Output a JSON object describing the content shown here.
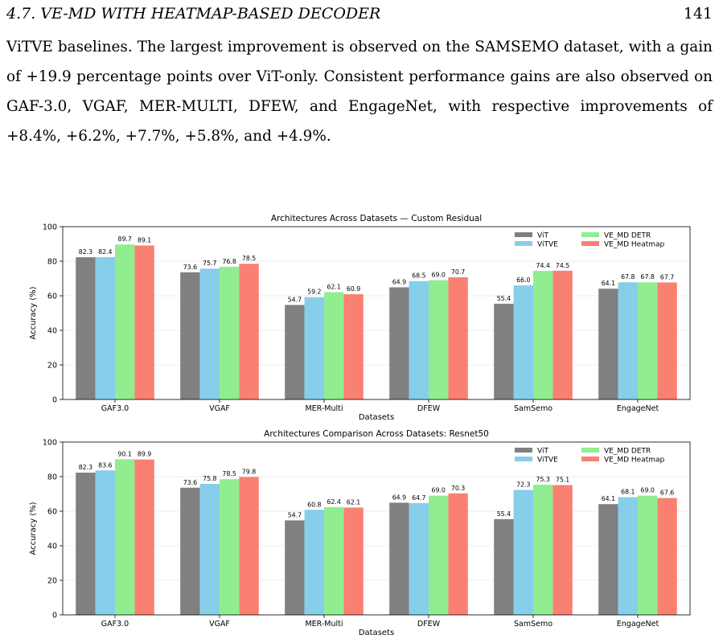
{
  "header": {
    "section": "4.7. VE-MD WITH HEATMAP-BASED DECODER",
    "page_number": "141"
  },
  "paragraph": "ViTVE baselines. The largest improvement is observed on the SAMSEMO dataset, with a gain of +19.9 percentage points over ViT-only. Consistent performance gains are also observed on GAF-3.0, VGAF, MER-MULTI, DFEW, and EngageNet, with respective improvements of +8.4%, +6.2%, +7.7%, +5.8%, and +4.9%.",
  "chart_data": [
    {
      "type": "bar",
      "title": "Architectures Across Datasets — Custom Residual",
      "xlabel": "Datasets",
      "ylabel": "Accuracy (%)",
      "ylim": [
        0,
        100
      ],
      "yticks": [
        "0",
        "20",
        "40",
        "60",
        "80",
        "100"
      ],
      "grid": true,
      "legend_position": "top-right",
      "categories": [
        "GAF3.0",
        "VGAF",
        "MER-Multi",
        "DFEW",
        "SamSemo",
        "EngageNet"
      ],
      "series": [
        {
          "name": "ViT",
          "color": "#808080",
          "values": [
            82.3,
            73.6,
            54.7,
            64.9,
            55.4,
            64.1
          ]
        },
        {
          "name": "ViTVE",
          "color": "#87ceeb",
          "values": [
            82.4,
            75.7,
            59.2,
            68.5,
            66.0,
            67.8
          ]
        },
        {
          "name": "VE_MD DETR",
          "color": "#90ee90",
          "values": [
            89.7,
            76.8,
            62.1,
            69.0,
            74.4,
            67.8
          ]
        },
        {
          "name": "VE_MD Heatmap",
          "color": "#fa8072",
          "values": [
            89.1,
            78.5,
            60.9,
            70.7,
            74.5,
            67.7
          ]
        }
      ]
    },
    {
      "type": "bar",
      "title": "Architectures Comparison Across Datasets: Resnet50",
      "xlabel": "Datasets",
      "ylabel": "Accuracy (%)",
      "ylim": [
        0,
        100
      ],
      "yticks": [
        "0",
        "20",
        "40",
        "60",
        "80",
        "100"
      ],
      "grid": true,
      "legend_position": "top-right",
      "categories": [
        "GAF3.0",
        "VGAF",
        "MER-Multi",
        "DFEW",
        "SamSemo",
        "EngageNet"
      ],
      "series": [
        {
          "name": "ViT",
          "color": "#808080",
          "values": [
            82.3,
            73.6,
            54.7,
            64.9,
            55.4,
            64.1
          ]
        },
        {
          "name": "ViTVE",
          "color": "#87ceeb",
          "values": [
            83.6,
            75.8,
            60.8,
            64.7,
            72.3,
            68.1
          ]
        },
        {
          "name": "VE_MD DETR",
          "color": "#90ee90",
          "values": [
            90.1,
            78.5,
            62.4,
            69.0,
            75.3,
            69.0
          ]
        },
        {
          "name": "VE_MD Heatmap",
          "color": "#fa8072",
          "values": [
            89.9,
            79.8,
            62.1,
            70.3,
            75.1,
            67.6
          ]
        }
      ]
    }
  ]
}
